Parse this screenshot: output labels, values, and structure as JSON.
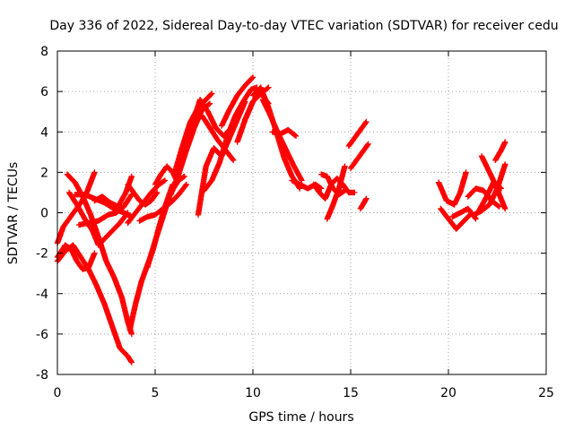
{
  "chart_data": {
    "type": "scatter",
    "title": "Day 336 of 2022, Sidereal Day-to-day VTEC variation (SDTVAR) for receiver cedu",
    "xlabel": "GPS time / hours",
    "ylabel": "SDTVAR / TECUs",
    "xlim": [
      0,
      25
    ],
    "ylim": [
      -8,
      8
    ],
    "xticks": [
      0,
      5,
      10,
      15,
      20,
      25
    ],
    "yticks": [
      -8,
      -6,
      -4,
      -2,
      0,
      2,
      4,
      6,
      8
    ],
    "grid": true,
    "marker": "plus",
    "color": "#ff0000",
    "series": [
      {
        "x": [
          0.0,
          0.3,
          0.6,
          0.9,
          1.2,
          1.5,
          1.9
        ],
        "y": [
          -1.5,
          -0.7,
          -0.3,
          0.1,
          0.5,
          1.0,
          2.0
        ]
      },
      {
        "x": [
          0.0,
          0.4,
          0.8,
          1.2,
          1.6,
          2.0,
          2.4,
          2.8,
          3.2,
          3.6,
          3.8
        ],
        "y": [
          -2.4,
          -1.9,
          -1.6,
          -2.2,
          -2.8,
          -3.6,
          -4.5,
          -5.6,
          -6.7,
          -7.1,
          -7.4
        ]
      },
      {
        "x": [
          0.0,
          0.4,
          0.7,
          1.0,
          1.3,
          1.6,
          1.9
        ],
        "y": [
          -2.2,
          -1.6,
          -1.8,
          -2.4,
          -2.8,
          -2.7,
          -2.0
        ]
      },
      {
        "x": [
          0.5,
          0.9,
          1.3,
          1.7,
          2.1,
          2.5,
          2.9,
          3.3,
          3.6,
          3.8
        ],
        "y": [
          1.9,
          1.5,
          0.8,
          -0.1,
          -1.2,
          -2.4,
          -3.2,
          -4.2,
          -5.4,
          -6.0
        ]
      },
      {
        "x": [
          0.6,
          1.0,
          1.4,
          1.8,
          2.1,
          2.4,
          2.8,
          3.2,
          3.6
        ],
        "y": [
          1.0,
          0.4,
          -0.3,
          -0.9,
          -1.6,
          -1.3,
          -0.9,
          -0.5,
          0.0
        ]
      },
      {
        "x": [
          0.9,
          1.4,
          1.9,
          2.4,
          2.9,
          3.4,
          3.8
        ],
        "y": [
          0.9,
          0.9,
          0.7,
          0.5,
          0.2,
          0.0,
          -0.2
        ]
      },
      {
        "x": [
          1.1,
          1.6,
          2.1,
          2.6,
          3.0,
          3.4,
          3.8
        ],
        "y": [
          -0.6,
          -0.5,
          -0.4,
          -0.1,
          0.0,
          0.3,
          0.9
        ]
      },
      {
        "x": [
          1.9,
          2.3,
          2.7,
          3.1,
          3.5,
          3.8
        ],
        "y": [
          0.6,
          0.8,
          0.5,
          0.3,
          1.0,
          1.8
        ]
      },
      {
        "x": [
          3.6,
          4.0,
          4.4,
          4.8,
          5.2,
          5.5
        ],
        "y": [
          -0.5,
          0.0,
          0.5,
          1.0,
          1.4,
          1.6
        ]
      },
      {
        "x": [
          3.6,
          3.9,
          4.2,
          4.5,
          4.8,
          5.1
        ],
        "y": [
          1.4,
          1.0,
          0.6,
          0.4,
          0.6,
          1.0
        ]
      },
      {
        "x": [
          3.7,
          4.0,
          4.3,
          4.6,
          4.9,
          5.2,
          5.5,
          5.9
        ],
        "y": [
          -5.8,
          -4.5,
          -3.4,
          -2.6,
          -1.8,
          -0.7,
          0.3,
          1.4
        ]
      },
      {
        "x": [
          4.2,
          4.6,
          5.0,
          5.4,
          5.8,
          6.2,
          6.6
        ],
        "y": [
          -0.4,
          -0.2,
          -0.1,
          0.2,
          0.5,
          0.9,
          1.4
        ]
      },
      {
        "x": [
          4.6,
          5.0,
          5.4,
          5.8,
          6.2,
          6.5
        ],
        "y": [
          -2.7,
          -1.4,
          -0.2,
          1.0,
          1.6,
          1.8
        ]
      },
      {
        "x": [
          5.0,
          5.3,
          5.6,
          5.9,
          6.1
        ],
        "y": [
          1.4,
          1.9,
          2.3,
          2.0,
          1.6
        ]
      },
      {
        "x": [
          5.8,
          6.2,
          6.6,
          7.0,
          7.4,
          7.8
        ],
        "y": [
          0.9,
          1.9,
          3.1,
          4.2,
          5.1,
          5.4
        ]
      },
      {
        "x": [
          6.0,
          6.4,
          6.8,
          7.2,
          7.6,
          7.9
        ],
        "y": [
          2.0,
          3.3,
          4.5,
          5.2,
          5.6,
          5.9
        ]
      },
      {
        "x": [
          6.5,
          6.9,
          7.3,
          7.7,
          8.1,
          8.5,
          8.9
        ],
        "y": [
          3.0,
          4.4,
          5.6,
          5.0,
          4.2,
          3.8,
          4.2
        ]
      },
      {
        "x": [
          7.0,
          7.4,
          7.8,
          8.2,
          8.6,
          9.0
        ],
        "y": [
          4.5,
          4.8,
          4.2,
          3.6,
          3.1,
          2.6
        ]
      },
      {
        "x": [
          7.2,
          7.6,
          8.0,
          8.4,
          8.8,
          9.2,
          9.6
        ],
        "y": [
          -0.1,
          2.3,
          3.2,
          2.8,
          3.7,
          4.6,
          5.5
        ]
      },
      {
        "x": [
          7.5,
          7.9,
          8.3,
          8.7,
          9.1,
          9.5,
          9.9,
          10.2
        ],
        "y": [
          1.1,
          1.6,
          2.5,
          3.8,
          4.8,
          5.5,
          6.1,
          6.2
        ]
      },
      {
        "x": [
          8.4,
          8.8,
          9.2,
          9.6,
          10.0
        ],
        "y": [
          4.3,
          5.1,
          5.8,
          6.3,
          6.7
        ]
      },
      {
        "x": [
          9.2,
          9.6,
          10.0,
          10.4,
          10.8
        ],
        "y": [
          3.5,
          4.6,
          5.5,
          5.9,
          6.2
        ]
      },
      {
        "x": [
          9.6,
          10.0,
          10.4,
          10.8
        ],
        "y": [
          4.6,
          5.5,
          5.9,
          5.4
        ]
      },
      {
        "x": [
          10.0,
          10.4,
          10.8,
          11.2,
          11.6,
          12.0,
          12.4
        ],
        "y": [
          5.8,
          6.2,
          5.2,
          4.0,
          2.7,
          1.8,
          1.2
        ]
      },
      {
        "x": [
          10.5,
          10.9,
          11.3,
          11.7,
          12.1,
          12.5
        ],
        "y": [
          5.6,
          4.8,
          3.9,
          3.1,
          2.3,
          1.6
        ]
      },
      {
        "x": [
          11.0,
          11.4,
          11.8,
          12.2
        ],
        "y": [
          4.0,
          3.9,
          4.1,
          3.8
        ]
      },
      {
        "x": [
          12.0,
          12.4,
          12.8,
          13.2,
          13.5
        ],
        "y": [
          1.6,
          1.4,
          1.2,
          1.4,
          1.2
        ]
      },
      {
        "x": [
          13.1,
          13.4,
          13.7,
          14.0,
          14.3,
          14.6,
          14.9,
          15.2
        ],
        "y": [
          1.4,
          1.0,
          0.7,
          1.4,
          1.7,
          1.4,
          1.0,
          1.0
        ]
      },
      {
        "x": [
          13.5,
          13.8,
          14.1,
          14.4,
          14.7
        ],
        "y": [
          1.9,
          1.8,
          1.2,
          0.9,
          1.1
        ]
      },
      {
        "x": [
          13.8,
          14.1,
          14.4,
          14.7
        ],
        "y": [
          -0.3,
          0.4,
          1.2,
          2.3
        ]
      },
      {
        "x": [
          14.9,
          15.2,
          15.5,
          15.8
        ],
        "y": [
          3.3,
          3.7,
          4.1,
          4.5
        ]
      },
      {
        "x": [
          15.0,
          15.3,
          15.6,
          15.9
        ],
        "y": [
          2.2,
          2.6,
          3.0,
          3.4
        ]
      },
      {
        "x": [
          15.5,
          15.8
        ],
        "y": [
          0.2,
          0.7
        ]
      },
      {
        "x": [
          19.5,
          19.9,
          20.3,
          20.6,
          20.9
        ],
        "y": [
          1.5,
          0.6,
          0.4,
          1.0,
          2.0
        ]
      },
      {
        "x": [
          19.6,
          20.0,
          20.4,
          20.8,
          21.2
        ],
        "y": [
          0.2,
          -0.3,
          -0.8,
          -0.4,
          0.0
        ]
      },
      {
        "x": [
          20.2,
          20.6,
          21.0,
          21.4
        ],
        "y": [
          -0.2,
          0.0,
          0.2,
          -0.3
        ]
      },
      {
        "x": [
          21.0,
          21.4,
          21.8,
          22.2,
          22.6
        ],
        "y": [
          0.8,
          1.2,
          1.1,
          0.6,
          0.3
        ]
      },
      {
        "x": [
          21.3,
          21.7,
          22.1,
          22.5,
          22.9
        ],
        "y": [
          -0.1,
          0.1,
          0.4,
          1.2,
          2.4
        ]
      },
      {
        "x": [
          21.5,
          21.9,
          22.3,
          22.7
        ],
        "y": [
          0.0,
          0.7,
          1.5,
          1.2
        ]
      },
      {
        "x": [
          21.7,
          22.0,
          22.3,
          22.6,
          22.9
        ],
        "y": [
          2.8,
          2.2,
          1.6,
          0.9,
          0.2
        ]
      },
      {
        "x": [
          22.4,
          22.7,
          22.9
        ],
        "y": [
          2.6,
          3.1,
          3.5
        ]
      }
    ]
  }
}
